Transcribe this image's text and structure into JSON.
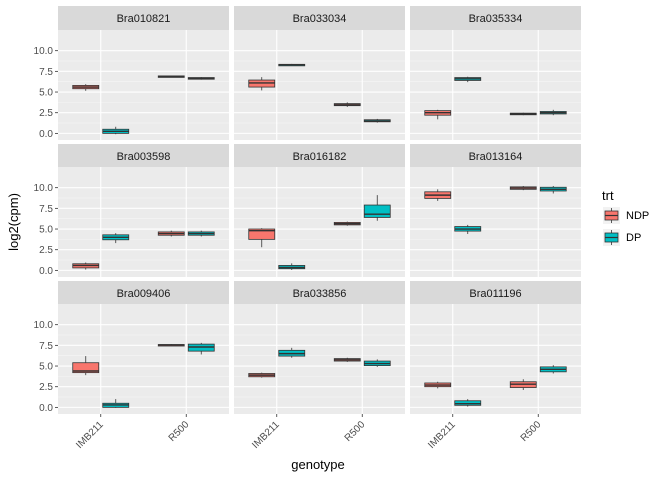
{
  "chart_data": {
    "type": "box",
    "facet_layout": "3x3",
    "xlabel": "genotype",
    "ylabel": "log2(cpm)",
    "ylim": [
      -0.8,
      12.5
    ],
    "yticks": [
      0.0,
      2.5,
      5.0,
      7.5,
      10.0
    ],
    "ytick_labels": [
      "0.0",
      "2.5",
      "5.0",
      "7.5",
      "10.0"
    ],
    "categories": [
      "IMB211",
      "R500"
    ],
    "legend": {
      "title": "trt",
      "position": "right",
      "items": [
        {
          "key": "NDP",
          "label": "NDP",
          "color": "#F8766D"
        },
        {
          "key": "DP",
          "label": "DP",
          "color": "#00BFC4"
        }
      ]
    },
    "grid": true,
    "panels": [
      {
        "title": "Bra010821",
        "boxes": [
          {
            "genotype": "IMB211",
            "trt": "NDP",
            "min": 5.15,
            "q1": 5.4,
            "median": 5.6,
            "q3": 5.8,
            "max": 5.95
          },
          {
            "genotype": "IMB211",
            "trt": "DP",
            "min": -0.1,
            "q1": 0.0,
            "median": 0.25,
            "q3": 0.5,
            "max": 0.8
          },
          {
            "genotype": "R500",
            "trt": "NDP",
            "min": 6.8,
            "q1": 6.85,
            "median": 6.9,
            "q3": 6.95,
            "max": 7.0
          },
          {
            "genotype": "R500",
            "trt": "DP",
            "min": 6.5,
            "q1": 6.55,
            "median": 6.65,
            "q3": 6.75,
            "max": 6.8
          }
        ]
      },
      {
        "title": "Bra033034",
        "boxes": [
          {
            "genotype": "IMB211",
            "trt": "NDP",
            "min": 5.2,
            "q1": 5.6,
            "median": 6.1,
            "q3": 6.45,
            "max": 6.8
          },
          {
            "genotype": "IMB211",
            "trt": "DP",
            "min": 8.15,
            "q1": 8.2,
            "median": 8.3,
            "q3": 8.35,
            "max": 8.4
          },
          {
            "genotype": "R500",
            "trt": "NDP",
            "min": 3.2,
            "q1": 3.35,
            "median": 3.45,
            "q3": 3.6,
            "max": 3.75
          },
          {
            "genotype": "R500",
            "trt": "DP",
            "min": 1.3,
            "q1": 1.4,
            "median": 1.5,
            "q3": 1.65,
            "max": 1.75
          }
        ]
      },
      {
        "title": "Bra035334",
        "boxes": [
          {
            "genotype": "IMB211",
            "trt": "NDP",
            "min": 1.7,
            "q1": 2.2,
            "median": 2.5,
            "q3": 2.75,
            "max": 2.85
          },
          {
            "genotype": "IMB211",
            "trt": "DP",
            "min": 6.2,
            "q1": 6.4,
            "median": 6.6,
            "q3": 6.75,
            "max": 6.85
          },
          {
            "genotype": "R500",
            "trt": "NDP",
            "min": 2.2,
            "q1": 2.25,
            "median": 2.35,
            "q3": 2.45,
            "max": 2.5
          },
          {
            "genotype": "R500",
            "trt": "DP",
            "min": 2.2,
            "q1": 2.35,
            "median": 2.5,
            "q3": 2.65,
            "max": 2.85
          }
        ]
      },
      {
        "title": "Bra003598",
        "boxes": [
          {
            "genotype": "IMB211",
            "trt": "NDP",
            "min": 0.1,
            "q1": 0.3,
            "median": 0.6,
            "q3": 0.8,
            "max": 0.95
          },
          {
            "genotype": "IMB211",
            "trt": "DP",
            "min": 3.3,
            "q1": 3.7,
            "median": 4.0,
            "q3": 4.3,
            "max": 4.5
          },
          {
            "genotype": "R500",
            "trt": "NDP",
            "min": 4.1,
            "q1": 4.25,
            "median": 4.45,
            "q3": 4.65,
            "max": 4.8
          },
          {
            "genotype": "R500",
            "trt": "DP",
            "min": 4.1,
            "q1": 4.25,
            "median": 4.45,
            "q3": 4.65,
            "max": 4.8
          }
        ]
      },
      {
        "title": "Bra016182",
        "boxes": [
          {
            "genotype": "IMB211",
            "trt": "NDP",
            "min": 2.8,
            "q1": 3.75,
            "median": 4.8,
            "q3": 5.0,
            "max": 5.1
          },
          {
            "genotype": "IMB211",
            "trt": "DP",
            "min": 0.05,
            "q1": 0.2,
            "median": 0.35,
            "q3": 0.6,
            "max": 0.85
          },
          {
            "genotype": "R500",
            "trt": "NDP",
            "min": 5.4,
            "q1": 5.5,
            "median": 5.65,
            "q3": 5.8,
            "max": 5.9
          },
          {
            "genotype": "R500",
            "trt": "DP",
            "min": 6.0,
            "q1": 6.4,
            "median": 6.8,
            "q3": 7.9,
            "max": 9.1
          }
        ]
      },
      {
        "title": "Bra013164",
        "boxes": [
          {
            "genotype": "IMB211",
            "trt": "NDP",
            "min": 8.4,
            "q1": 8.7,
            "median": 9.1,
            "q3": 9.5,
            "max": 9.8
          },
          {
            "genotype": "IMB211",
            "trt": "DP",
            "min": 4.4,
            "q1": 4.75,
            "median": 5.0,
            "q3": 5.3,
            "max": 5.5
          },
          {
            "genotype": "R500",
            "trt": "NDP",
            "min": 9.7,
            "q1": 9.8,
            "median": 9.95,
            "q3": 10.1,
            "max": 10.2
          },
          {
            "genotype": "R500",
            "trt": "DP",
            "min": 9.3,
            "q1": 9.6,
            "median": 9.8,
            "q3": 10.05,
            "max": 10.2
          }
        ]
      },
      {
        "title": "Bra009406",
        "boxes": [
          {
            "genotype": "IMB211",
            "trt": "NDP",
            "min": 3.9,
            "q1": 4.2,
            "median": 4.4,
            "q3": 5.4,
            "max": 6.2
          },
          {
            "genotype": "IMB211",
            "trt": "DP",
            "min": -0.05,
            "q1": 0.0,
            "median": 0.3,
            "q3": 0.5,
            "max": 1.0
          },
          {
            "genotype": "R500",
            "trt": "NDP",
            "min": 7.45,
            "q1": 7.5,
            "median": 7.55,
            "q3": 7.6,
            "max": 7.65
          },
          {
            "genotype": "R500",
            "trt": "DP",
            "min": 6.4,
            "q1": 6.8,
            "median": 7.3,
            "q3": 7.65,
            "max": 7.8
          }
        ]
      },
      {
        "title": "Bra033856",
        "boxes": [
          {
            "genotype": "IMB211",
            "trt": "NDP",
            "min": 3.6,
            "q1": 3.7,
            "median": 3.9,
            "q3": 4.1,
            "max": 4.2
          },
          {
            "genotype": "IMB211",
            "trt": "DP",
            "min": 6.0,
            "q1": 6.2,
            "median": 6.5,
            "q3": 6.9,
            "max": 7.2
          },
          {
            "genotype": "R500",
            "trt": "NDP",
            "min": 5.5,
            "q1": 5.6,
            "median": 5.75,
            "q3": 5.9,
            "max": 6.0
          },
          {
            "genotype": "R500",
            "trt": "DP",
            "min": 4.9,
            "q1": 5.05,
            "median": 5.3,
            "q3": 5.6,
            "max": 5.8
          }
        ]
      },
      {
        "title": "Bra011196",
        "boxes": [
          {
            "genotype": "IMB211",
            "trt": "NDP",
            "min": 2.3,
            "q1": 2.5,
            "median": 2.7,
            "q3": 2.95,
            "max": 3.1
          },
          {
            "genotype": "IMB211",
            "trt": "DP",
            "min": 0.1,
            "q1": 0.25,
            "median": 0.45,
            "q3": 0.8,
            "max": 1.0
          },
          {
            "genotype": "R500",
            "trt": "NDP",
            "min": 2.1,
            "q1": 2.4,
            "median": 2.8,
            "q3": 3.1,
            "max": 3.4
          },
          {
            "genotype": "R500",
            "trt": "DP",
            "min": 4.1,
            "q1": 4.3,
            "median": 4.6,
            "q3": 4.9,
            "max": 5.1
          }
        ]
      }
    ]
  }
}
